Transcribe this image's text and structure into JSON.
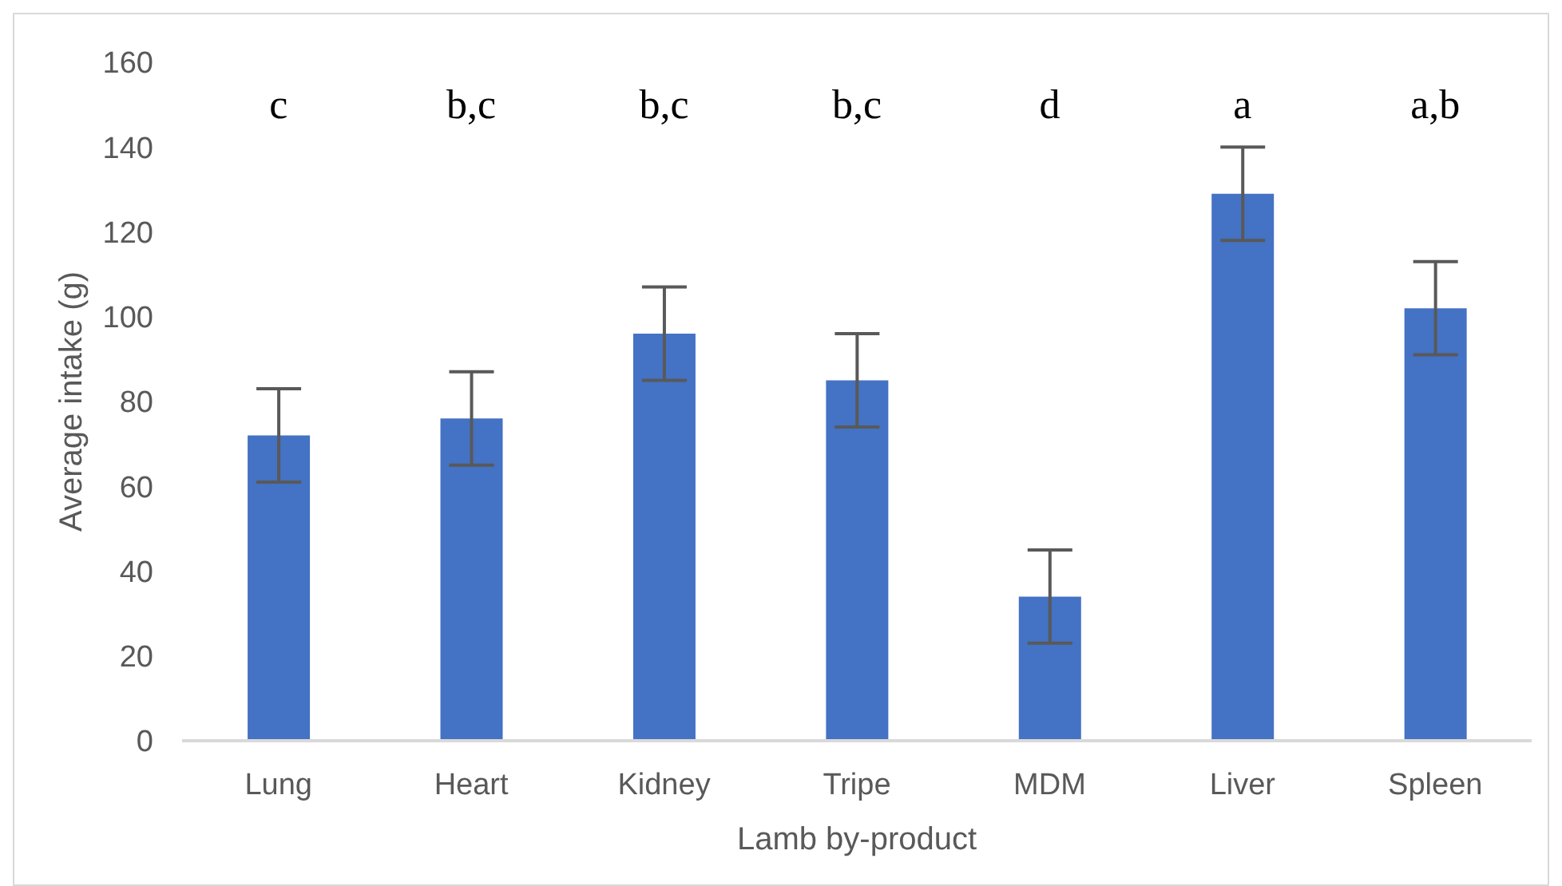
{
  "chart_data": {
    "type": "bar",
    "xlabel": "Lamb by-product",
    "ylabel": "Average intake (g)",
    "categories": [
      "Lung",
      "Heart",
      "Kidney",
      "Tripe",
      "MDM",
      "Liver",
      "Spleen"
    ],
    "values": [
      72,
      76,
      96,
      85,
      34,
      129,
      102
    ],
    "errors": [
      11,
      11,
      11,
      11,
      11,
      11,
      11
    ],
    "color": "#4472c4",
    "ylim": [
      0,
      160
    ],
    "yticks": [
      0,
      20,
      40,
      60,
      80,
      100,
      120,
      140,
      160
    ],
    "grid": false,
    "legend": false,
    "annotations": [
      "c",
      "b,c",
      "b,c",
      "b,c",
      "d",
      "a",
      "a,b"
    ]
  }
}
